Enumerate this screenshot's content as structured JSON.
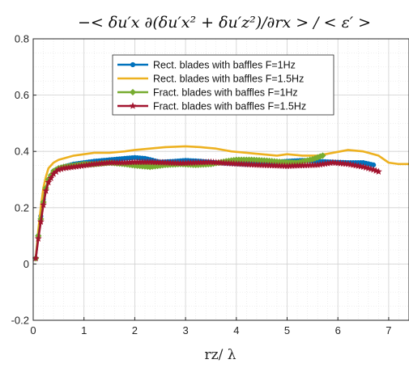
{
  "chart_data": {
    "type": "line",
    "title": "−< δu′x ∂(δu′x² + δu′z²)/∂rx > / < ε′ >",
    "xlabel": "rz/ λ",
    "ylabel": "",
    "xlim": [
      0,
      7.4
    ],
    "ylim": [
      -0.2,
      0.8
    ],
    "xticks": [
      0,
      1,
      2,
      3,
      4,
      5,
      6,
      7
    ],
    "yticks": [
      -0.2,
      0,
      0.2,
      0.4,
      0.6,
      0.8
    ],
    "xtick_labels": [
      "0",
      "1",
      "2",
      "3",
      "4",
      "5",
      "6",
      "7"
    ],
    "ytick_labels": [
      "-0.2",
      "0",
      "0.2",
      "0.4",
      "0.6",
      "0.8"
    ],
    "grid": true,
    "minor_grid": true,
    "legend_position": "top-center",
    "series": [
      {
        "name": "Rect. blades with baffles F=1Hz",
        "color": "#0072BD",
        "marker": "dot",
        "x": [
          0.05,
          0.1,
          0.15,
          0.2,
          0.25,
          0.3,
          0.4,
          0.5,
          0.6,
          0.8,
          1.0,
          1.2,
          1.5,
          1.8,
          2.0,
          2.2,
          2.5,
          2.8,
          3.0,
          3.3,
          3.6,
          3.9,
          4.2,
          4.5,
          4.8,
          5.0,
          5.3,
          5.6,
          5.9,
          6.2,
          6.5,
          6.7
        ],
        "y": [
          0.02,
          0.1,
          0.17,
          0.23,
          0.27,
          0.3,
          0.33,
          0.34,
          0.345,
          0.355,
          0.36,
          0.365,
          0.37,
          0.375,
          0.378,
          0.375,
          0.362,
          0.365,
          0.368,
          0.365,
          0.36,
          0.358,
          0.355,
          0.358,
          0.362,
          0.365,
          0.368,
          0.365,
          0.362,
          0.36,
          0.36,
          0.352
        ]
      },
      {
        "name": "Rect. blades with baffles F=1.5Hz",
        "color": "#EDB120",
        "marker": "none",
        "x": [
          0.05,
          0.1,
          0.15,
          0.2,
          0.25,
          0.3,
          0.4,
          0.5,
          0.6,
          0.8,
          1.0,
          1.2,
          1.5,
          1.8,
          2.0,
          2.3,
          2.6,
          3.0,
          3.3,
          3.6,
          3.9,
          4.2,
          4.5,
          4.8,
          5.0,
          5.3,
          5.6,
          5.9,
          6.2,
          6.5,
          6.8,
          7.0,
          7.2,
          7.4
        ],
        "y": [
          0.02,
          0.12,
          0.2,
          0.27,
          0.31,
          0.34,
          0.36,
          0.37,
          0.375,
          0.385,
          0.39,
          0.395,
          0.395,
          0.4,
          0.405,
          0.41,
          0.415,
          0.418,
          0.415,
          0.41,
          0.4,
          0.395,
          0.39,
          0.385,
          0.39,
          0.385,
          0.385,
          0.395,
          0.405,
          0.4,
          0.385,
          0.36,
          0.355,
          0.355
        ]
      },
      {
        "name": "Fract. blades with baffles F=1Hz",
        "color": "#77AC30",
        "marker": "diamond",
        "x": [
          0.05,
          0.1,
          0.15,
          0.2,
          0.25,
          0.3,
          0.4,
          0.5,
          0.6,
          0.8,
          1.0,
          1.2,
          1.5,
          1.8,
          2.0,
          2.3,
          2.6,
          2.9,
          3.2,
          3.5,
          3.8,
          4.0,
          4.3,
          4.6,
          4.9,
          5.2,
          5.5,
          5.7
        ],
        "y": [
          0.02,
          0.1,
          0.16,
          0.22,
          0.27,
          0.3,
          0.33,
          0.34,
          0.345,
          0.35,
          0.355,
          0.355,
          0.36,
          0.355,
          0.35,
          0.345,
          0.352,
          0.355,
          0.352,
          0.355,
          0.365,
          0.37,
          0.37,
          0.367,
          0.362,
          0.36,
          0.372,
          0.385
        ]
      },
      {
        "name": "Fract. blades with baffles F=1.5Hz",
        "color": "#A2142F",
        "marker": "star",
        "x": [
          0.05,
          0.1,
          0.15,
          0.2,
          0.25,
          0.3,
          0.4,
          0.5,
          0.6,
          0.8,
          1.0,
          1.2,
          1.5,
          1.8,
          2.0,
          2.3,
          2.6,
          2.9,
          3.2,
          3.5,
          3.8,
          4.1,
          4.4,
          4.7,
          5.0,
          5.3,
          5.6,
          5.9,
          6.2,
          6.5,
          6.7,
          6.8
        ],
        "y": [
          0.02,
          0.09,
          0.15,
          0.21,
          0.26,
          0.29,
          0.32,
          0.335,
          0.34,
          0.345,
          0.35,
          0.355,
          0.36,
          0.36,
          0.362,
          0.362,
          0.36,
          0.358,
          0.36,
          0.362,
          0.358,
          0.355,
          0.352,
          0.35,
          0.348,
          0.35,
          0.352,
          0.36,
          0.355,
          0.345,
          0.335,
          0.328
        ]
      }
    ]
  }
}
